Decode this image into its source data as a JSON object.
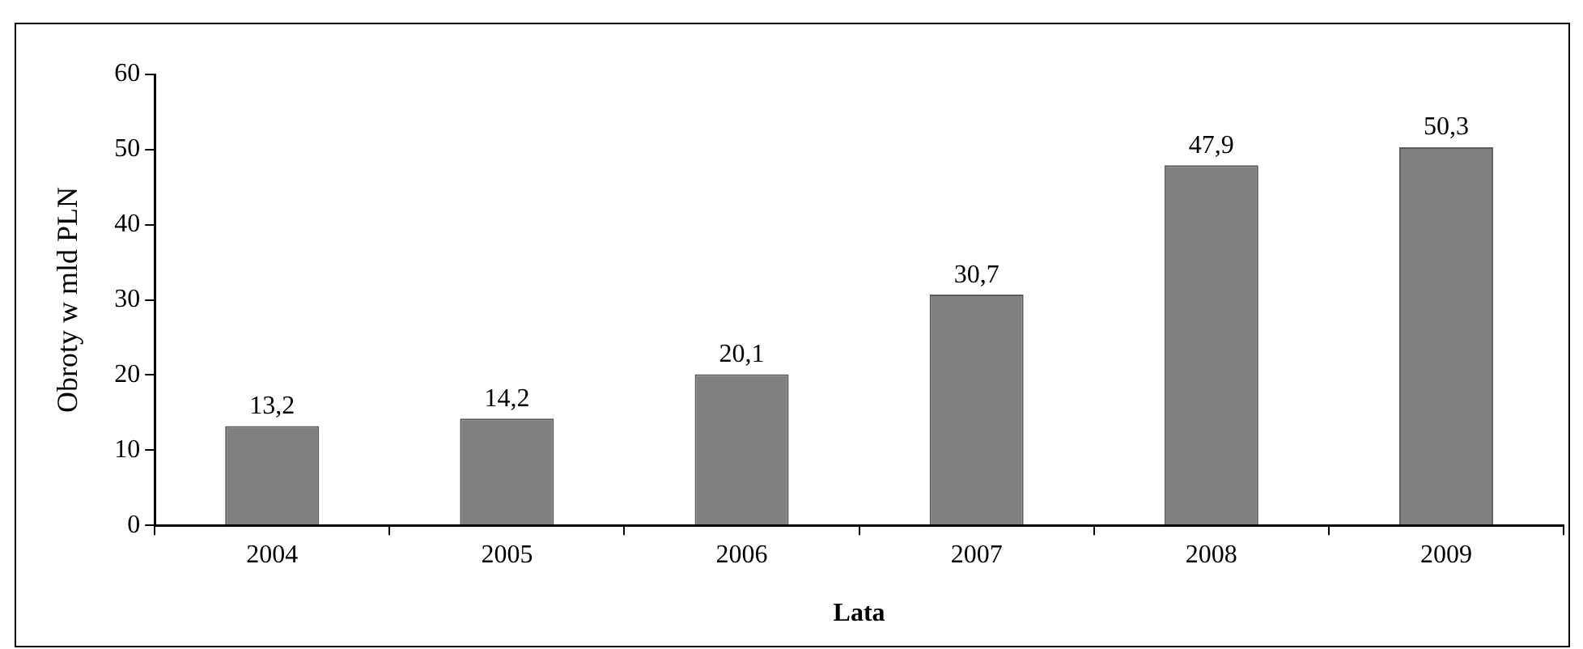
{
  "chart_data": {
    "type": "bar",
    "xlabel": "Lata",
    "ylabel": "Obroty w mld PLN",
    "categories": [
      "2004",
      "2005",
      "2006",
      "2007",
      "2008",
      "2009"
    ],
    "values": [
      13.2,
      14.2,
      20.1,
      30.7,
      47.9,
      50.3
    ],
    "value_labels": [
      "13,2",
      "14,2",
      "20,1",
      "30,7",
      "47,9",
      "50,3"
    ],
    "color": "#808080",
    "ylim": [
      0,
      60
    ],
    "yticks": [
      0,
      10,
      20,
      30,
      40,
      50,
      60
    ],
    "grid": false,
    "legend": false
  }
}
